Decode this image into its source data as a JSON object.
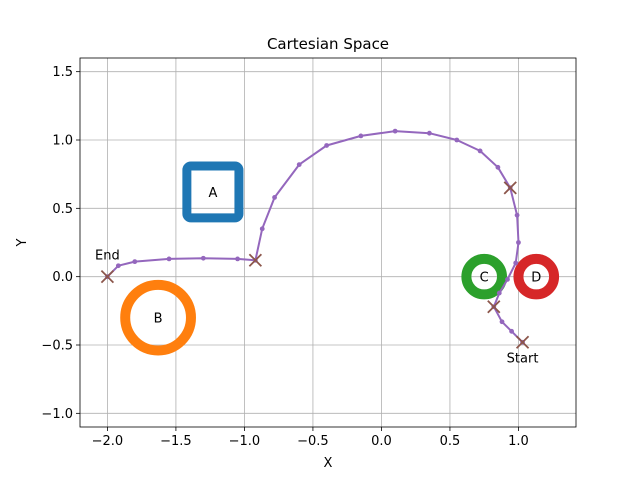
{
  "chart_data": {
    "type": "scatter",
    "title": "Cartesian Space",
    "xlabel": "X",
    "ylabel": "Y",
    "xlim": [
      -2.2,
      1.42
    ],
    "ylim": [
      -1.1,
      1.6
    ],
    "xticks": [
      -2.0,
      -1.5,
      -1.0,
      -0.5,
      0.0,
      0.5,
      1.0
    ],
    "xtick_labels": [
      "−2.0",
      "−1.5",
      "−1.0",
      "−0.5",
      "0.0",
      "0.5",
      "1.0"
    ],
    "yticks": [
      -1.0,
      -0.5,
      0.0,
      0.5,
      1.0,
      1.5
    ],
    "ytick_labels": [
      "−1.0",
      "−0.5",
      "0.0",
      "0.5",
      "1.0",
      "1.5"
    ],
    "grid": true,
    "obstacles": [
      {
        "label": "A",
        "shape": "square",
        "center": [
          -1.23,
          0.62
        ],
        "half_size": 0.19,
        "color": "#1f77b4"
      },
      {
        "label": "B",
        "shape": "ring",
        "center": [
          -1.63,
          -0.3
        ],
        "radius": 0.24,
        "color": "#ff7f0e"
      },
      {
        "label": "C",
        "shape": "ring",
        "center": [
          0.75,
          0.0
        ],
        "radius": 0.13,
        "color": "#2ca02c"
      },
      {
        "label": "D",
        "shape": "ring",
        "center": [
          1.13,
          0.0
        ],
        "radius": 0.13,
        "color": "#d62728"
      }
    ],
    "path": {
      "color": "#9467bd",
      "points": [
        [
          1.03,
          -0.48
        ],
        [
          0.95,
          -0.4
        ],
        [
          0.88,
          -0.33
        ],
        [
          0.82,
          -0.22
        ],
        [
          0.86,
          -0.12
        ],
        [
          0.92,
          -0.02
        ],
        [
          0.98,
          0.1
        ],
        [
          1.0,
          0.25
        ],
        [
          0.99,
          0.45
        ],
        [
          0.94,
          0.65
        ],
        [
          0.85,
          0.8
        ],
        [
          0.72,
          0.92
        ],
        [
          0.55,
          1.0
        ],
        [
          0.35,
          1.05
        ],
        [
          0.1,
          1.065
        ],
        [
          -0.15,
          1.03
        ],
        [
          -0.4,
          0.96
        ],
        [
          -0.6,
          0.82
        ],
        [
          -0.78,
          0.58
        ],
        [
          -0.87,
          0.35
        ],
        [
          -0.92,
          0.12
        ],
        [
          -1.05,
          0.13
        ],
        [
          -1.3,
          0.135
        ],
        [
          -1.55,
          0.13
        ],
        [
          -1.8,
          0.11
        ],
        [
          -1.92,
          0.08
        ],
        [
          -2.0,
          0.0
        ]
      ]
    },
    "waypoints": [
      {
        "point": [
          1.03,
          -0.48
        ],
        "label": "Start"
      },
      {
        "point": [
          0.82,
          -0.22
        ],
        "label": ""
      },
      {
        "point": [
          0.94,
          0.65
        ],
        "label": ""
      },
      {
        "point": [
          -0.92,
          0.12
        ],
        "label": ""
      },
      {
        "point": [
          -2.0,
          0.0
        ],
        "label": "End"
      }
    ],
    "waypoint_color": "#8c564b"
  }
}
